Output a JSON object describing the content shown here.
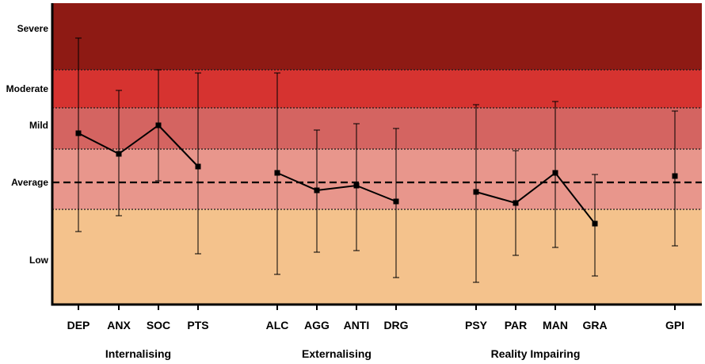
{
  "chart_data": {
    "type": "scatter",
    "title": "",
    "xlabel": "",
    "ylabel": "",
    "bands": [
      {
        "name": "Low",
        "from": 0,
        "to": 30,
        "color": "#f4c28c"
      },
      {
        "name": "Average",
        "from": 30,
        "to": 49,
        "color": "#e8968c"
      },
      {
        "name": "Mild",
        "from": 49,
        "to": 62,
        "color": "#d46461"
      },
      {
        "name": "Moderate",
        "from": 62,
        "to": 74,
        "color": "#d63330"
      },
      {
        "name": "Severe",
        "from": 74,
        "to": 95,
        "color": "#8e1a14"
      }
    ],
    "band_labels": [
      {
        "text": "Severe",
        "value": 87
      },
      {
        "text": "Moderate",
        "value": 68
      },
      {
        "text": "Mild",
        "value": 56.5
      },
      {
        "text": "Average",
        "value": 38.5
      },
      {
        "text": "Low",
        "value": 14
      }
    ],
    "reference_line": 38.5,
    "ylim": [
      0,
      95
    ],
    "groups": [
      {
        "name": "Internalising",
        "categories": [
          "DEP",
          "ANX",
          "SOC",
          "PTS"
        ]
      },
      {
        "name": "Externalising",
        "categories": [
          "ALC",
          "AGG",
          "ANTI",
          "DRG"
        ]
      },
      {
        "name": "Reality Impairing",
        "categories": [
          "PSY",
          "PAR",
          "MAN",
          "GRA"
        ]
      },
      {
        "name": "",
        "categories": [
          "GPI"
        ]
      }
    ],
    "points": [
      {
        "label": "DEP",
        "value": 54,
        "low": 23,
        "high": 84
      },
      {
        "label": "ANX",
        "value": 47.5,
        "low": 28,
        "high": 67.5
      },
      {
        "label": "SOC",
        "value": 56.5,
        "low": 39,
        "high": 74
      },
      {
        "label": "PTS",
        "value": 43.5,
        "low": 16,
        "high": 73
      },
      {
        "label": "ALC",
        "value": 41.5,
        "low": 9.5,
        "high": 73
      },
      {
        "label": "AGG",
        "value": 36,
        "low": 16.5,
        "high": 55
      },
      {
        "label": "ANTI",
        "value": 37.5,
        "low": 17,
        "high": 57
      },
      {
        "label": "DRG",
        "value": 32.5,
        "low": 8.5,
        "high": 55.5
      },
      {
        "label": "PSY",
        "value": 35.5,
        "low": 7,
        "high": 63
      },
      {
        "label": "PAR",
        "value": 32,
        "low": 15.5,
        "high": 48.5
      },
      {
        "label": "MAN",
        "value": 41.5,
        "low": 18,
        "high": 64
      },
      {
        "label": "GRA",
        "value": 25.5,
        "low": 9,
        "high": 41
      },
      {
        "label": "GPI",
        "value": 40.5,
        "low": 18.5,
        "high": 61
      }
    ]
  }
}
